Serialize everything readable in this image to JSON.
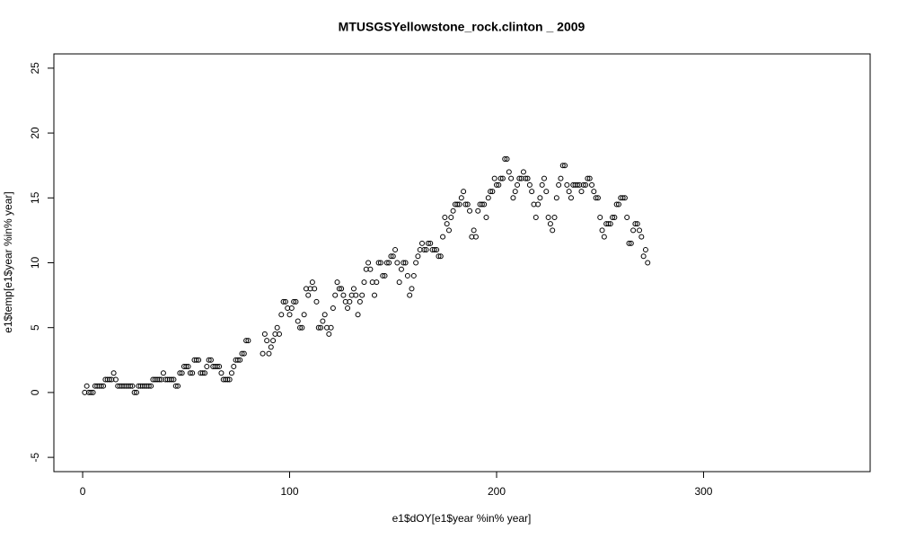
{
  "chart_data": {
    "type": "scatter",
    "title": "MTUSGSYellowstone_rock.clinton _ 2009",
    "x_label": "e1$dOY[e1$year %in% year]",
    "y_label": "e1$temp[e1$year %in% year]",
    "xlim": [
      -13.9,
      380.5
    ],
    "ylim": [
      -6.1,
      26.1
    ],
    "xticks": [
      0,
      100,
      200,
      300
    ],
    "yticks": [
      -5,
      0,
      5,
      10,
      15,
      20,
      25
    ],
    "color": "#000000",
    "x": [
      1,
      2,
      3,
      4,
      5,
      6,
      7,
      8,
      9,
      10,
      11,
      12,
      13,
      14,
      15,
      16,
      17,
      18,
      19,
      20,
      21,
      22,
      23,
      24,
      25,
      26,
      27,
      28,
      29,
      30,
      31,
      32,
      33,
      34,
      35,
      36,
      37,
      38,
      39,
      40,
      41,
      42,
      43,
      44,
      45,
      46,
      47,
      48,
      49,
      50,
      51,
      52,
      53,
      54,
      55,
      56,
      57,
      58,
      59,
      60,
      61,
      62,
      63,
      64,
      65,
      66,
      67,
      68,
      69,
      70,
      71,
      72,
      73,
      74,
      75,
      76,
      77,
      78,
      79,
      80,
      81,
      82,
      83,
      84,
      85,
      86,
      87,
      88,
      89,
      90,
      91,
      92,
      93,
      94,
      95,
      96,
      97,
      98,
      99,
      100,
      101,
      102,
      103,
      104,
      105,
      106,
      107,
      108,
      109,
      110,
      111,
      112,
      113,
      114,
      115,
      116,
      117,
      118,
      119,
      120,
      121,
      122,
      123,
      124,
      125,
      126,
      127,
      128,
      129,
      130,
      131,
      132,
      133,
      134,
      135,
      136,
      137,
      138,
      139,
      140,
      141,
      142,
      143,
      144,
      145,
      146,
      147,
      148,
      149,
      150,
      151,
      152,
      153,
      154,
      155,
      156,
      157,
      158,
      159,
      160,
      161,
      162,
      163,
      164,
      165,
      166,
      167,
      168,
      169,
      170,
      171,
      172,
      173,
      174,
      175,
      176,
      177,
      178,
      179,
      180,
      181,
      182,
      183,
      184,
      185,
      186,
      187,
      188,
      189,
      190,
      191,
      192,
      193,
      194,
      195,
      196,
      197,
      198,
      199,
      200,
      201,
      202,
      203,
      204,
      205,
      206,
      207,
      208,
      209,
      210,
      211,
      212,
      213,
      214,
      215,
      216,
      217,
      218,
      219,
      220,
      221,
      222,
      223,
      224,
      225,
      226,
      227,
      228,
      229,
      230,
      231,
      232,
      233,
      234,
      235,
      236,
      237,
      238,
      239,
      240,
      241,
      242,
      243,
      244,
      245,
      246,
      247,
      248,
      249,
      250,
      251,
      252,
      253,
      254,
      255,
      256,
      257,
      258,
      259,
      260,
      261,
      262,
      263,
      264,
      265,
      266,
      267,
      268,
      269,
      270,
      271,
      272,
      273
    ],
    "values": [
      0,
      0.5,
      0,
      0,
      0,
      0.5,
      0.5,
      0.5,
      0.5,
      0.5,
      1,
      1,
      1,
      1,
      1.5,
      1,
      0.5,
      0.5,
      0.5,
      0.5,
      0.5,
      0.5,
      0.5,
      0.5,
      0,
      0,
      0.5,
      0.5,
      0.5,
      0.5,
      0.5,
      0.5,
      0.5,
      1,
      1,
      1,
      1,
      1,
      1.5,
      1,
      1,
      1,
      1,
      1,
      0.5,
      0.5,
      1.5,
      1.5,
      2,
      2,
      2,
      1.5,
      1.5,
      2.5,
      2.5,
      2.5,
      1.5,
      1.5,
      1.5,
      2,
      2.5,
      2.5,
      2,
      2,
      2,
      2,
      1.5,
      1,
      1,
      1,
      1,
      1.5,
      2,
      2.5,
      2.5,
      2.5,
      3,
      3,
      4,
      4,
      null,
      null,
      null,
      null,
      null,
      null,
      3,
      4.5,
      4,
      3,
      3.5,
      4,
      4.5,
      5,
      4.5,
      6,
      7,
      7,
      6.5,
      6,
      6.5,
      7,
      7,
      5.5,
      5,
      5,
      6,
      8,
      7.5,
      8,
      8.5,
      8,
      7,
      5,
      5,
      5.5,
      6,
      5,
      4.5,
      5,
      6.5,
      7.5,
      8.5,
      8,
      8,
      7.5,
      7,
      6.5,
      7,
      7.5,
      8,
      7.5,
      6,
      7,
      7.5,
      8.5,
      9.5,
      10,
      9.5,
      8.5,
      7.5,
      8.5,
      10,
      10,
      9,
      9,
      10,
      10,
      10.5,
      10.5,
      11,
      10,
      8.5,
      9.5,
      10,
      10,
      9,
      7.5,
      8,
      9,
      10,
      10.5,
      11,
      11.5,
      11,
      11,
      11.5,
      11.5,
      11,
      11,
      11,
      10.5,
      10.5,
      12,
      13.5,
      13,
      12.5,
      13.5,
      14,
      14.5,
      14.5,
      14.5,
      15,
      15.5,
      14.5,
      14.5,
      14,
      12,
      12.5,
      12,
      14,
      14.5,
      14.5,
      14.5,
      13.5,
      15,
      15.5,
      15.5,
      16.5,
      16,
      16,
      16.5,
      16.5,
      18,
      18,
      17,
      16.5,
      15,
      15.5,
      16,
      16.5,
      16.5,
      17,
      16.5,
      16.5,
      16,
      15.5,
      14.5,
      13.5,
      14.5,
      15,
      16,
      16.5,
      15.5,
      13.5,
      13,
      12.5,
      13.5,
      15,
      16,
      16.5,
      17.5,
      17.5,
      16,
      15.5,
      15,
      16,
      16,
      16,
      16,
      15.5,
      16,
      16,
      16.5,
      16.5,
      16,
      15.5,
      15,
      15,
      13.5,
      12.5,
      12,
      13,
      13,
      13,
      13.5,
      13.5,
      14.5,
      14.5,
      15,
      15,
      15,
      13.5,
      11.5,
      11.5,
      12.5,
      13,
      13,
      12.5,
      12,
      10.5,
      11,
      10
    ]
  }
}
